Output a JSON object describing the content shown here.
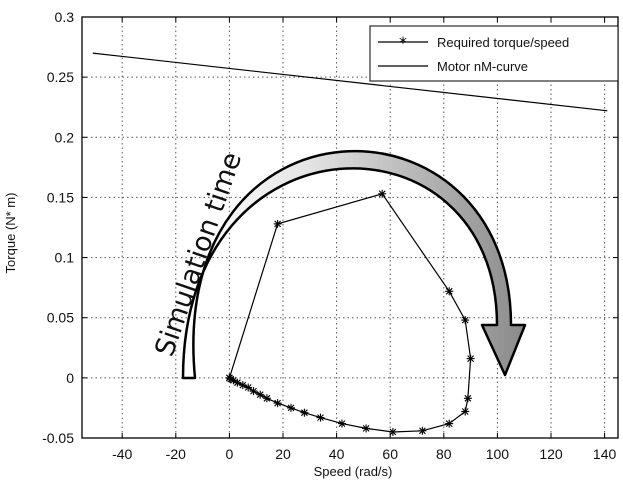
{
  "chart_data": {
    "type": "line",
    "xlabel": "Speed (rad/s)",
    "ylabel": "Torque (N* m)",
    "xlim": [
      -55,
      145
    ],
    "ylim": [
      -0.05,
      0.3
    ],
    "xticks": [
      -40,
      -20,
      0,
      20,
      40,
      60,
      80,
      100,
      120,
      140
    ],
    "yticks": [
      -0.05,
      0,
      0.05,
      0.1,
      0.15,
      0.2,
      0.25,
      0.3
    ],
    "xtick_labels": [
      "-40",
      "-20",
      "0",
      "20",
      "40",
      "60",
      "80",
      "100",
      "120",
      "140"
    ],
    "ytick_labels": [
      "-0.05",
      "0",
      "0.05",
      "0.1",
      "0.15",
      "0.2",
      "0.25",
      "0.3"
    ],
    "grid": true,
    "legend_position": "top-right",
    "series": [
      {
        "name": "Required torque/speed",
        "marker": "*",
        "x": [
          0,
          0.5,
          1.5,
          3,
          5,
          7,
          9,
          11.5,
          14,
          18,
          23,
          28,
          34,
          42,
          51,
          61,
          72,
          82,
          88,
          89,
          90,
          88,
          82,
          57,
          18,
          0
        ],
        "y": [
          0,
          -0.001,
          -0.002,
          -0.004,
          -0.006,
          -0.008,
          -0.011,
          -0.014,
          -0.017,
          -0.021,
          -0.025,
          -0.029,
          -0.033,
          -0.038,
          -0.042,
          -0.045,
          -0.044,
          -0.038,
          -0.028,
          -0.017,
          0.016,
          0.048,
          0.072,
          0.153,
          0.128,
          0
        ]
      },
      {
        "name": "Motor nM-curve",
        "marker": "none",
        "x": [
          -51,
          141
        ],
        "y": [
          0.27,
          0.222
        ]
      }
    ],
    "annotation": {
      "text": "Simulation time"
    }
  }
}
